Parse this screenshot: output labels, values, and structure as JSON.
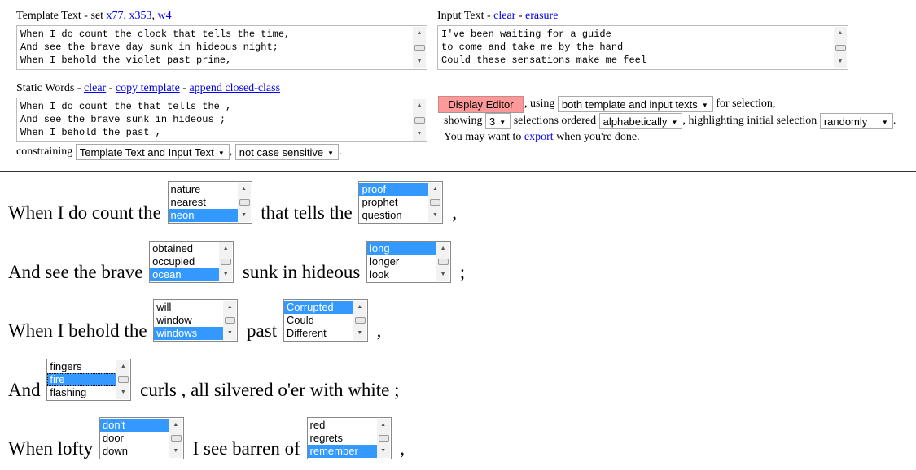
{
  "template": {
    "label": "Template Text - set ",
    "links": [
      "x77",
      "x353",
      "w4"
    ],
    "text": "When I do count the clock that tells the time,\nAnd see the brave day sunk in hideous night;\nWhen I behold the violet past prime,"
  },
  "input": {
    "label": "Input Text - ",
    "links": [
      "clear",
      "erasure"
    ],
    "text": "I've been waiting for a guide\nto come and take me by the hand\nCould these sensations make me feel"
  },
  "static": {
    "label": "Static Words - ",
    "links": [
      "clear",
      "copy template",
      "append closed-class"
    ],
    "text": "When I do count the that tells the ,\nAnd see the brave sunk in hideous ;\nWhen I behold the past ,"
  },
  "constraining": {
    "label": "constraining",
    "select1": "Template Text and Input Text",
    "select2": "not case sensitive"
  },
  "controls": {
    "button": "Display Editor",
    "using": ", using",
    "using_select": "both template and input texts",
    "for_selection": "for selection,",
    "showing": "showing",
    "showing_select": "3",
    "ordered": "selections ordered",
    "ordered_select": "alphabetically",
    "highlighting": ", highlighting initial selection",
    "highlight_select": "randomly",
    "export_pre": "You may want to ",
    "export_link": "export",
    "export_post": " when you're done."
  },
  "colors": {
    "button": "#ff9999",
    "selection": "#3399ff",
    "link": "#0000ee"
  },
  "poem": [
    [
      {
        "t": "When I do count the "
      },
      {
        "o": [
          "nature",
          "nearest",
          "neon"
        ],
        "s": 2
      },
      {
        "t": " that tells the "
      },
      {
        "o": [
          "proof",
          "prophet",
          "question"
        ],
        "s": 0
      },
      {
        "t": " ,"
      }
    ],
    [
      {
        "t": "And see the brave "
      },
      {
        "o": [
          "obtained",
          "occupied",
          "ocean"
        ],
        "s": 2
      },
      {
        "t": " sunk in hideous "
      },
      {
        "o": [
          "long",
          "longer",
          "look"
        ],
        "s": 0
      },
      {
        "t": " ;"
      }
    ],
    [
      {
        "t": "When I behold the "
      },
      {
        "o": [
          "will",
          "window",
          "windows"
        ],
        "s": 2
      },
      {
        "t": " past "
      },
      {
        "o": [
          "Corrupted",
          "Could",
          "Different"
        ],
        "s": 0
      },
      {
        "t": " ,"
      }
    ],
    [
      {
        "t": "And "
      },
      {
        "o": [
          "fingers",
          "fire",
          "flashing"
        ],
        "s": 1,
        "focus": true
      },
      {
        "t": " curls , all silvered o'er with white ;"
      }
    ],
    [
      {
        "t": "When lofty "
      },
      {
        "o": [
          "don't",
          "door",
          "down"
        ],
        "s": 0
      },
      {
        "t": " I see barren of "
      },
      {
        "o": [
          "red",
          "regrets",
          "remember"
        ],
        "s": 2
      },
      {
        "t": " ,"
      }
    ]
  ]
}
